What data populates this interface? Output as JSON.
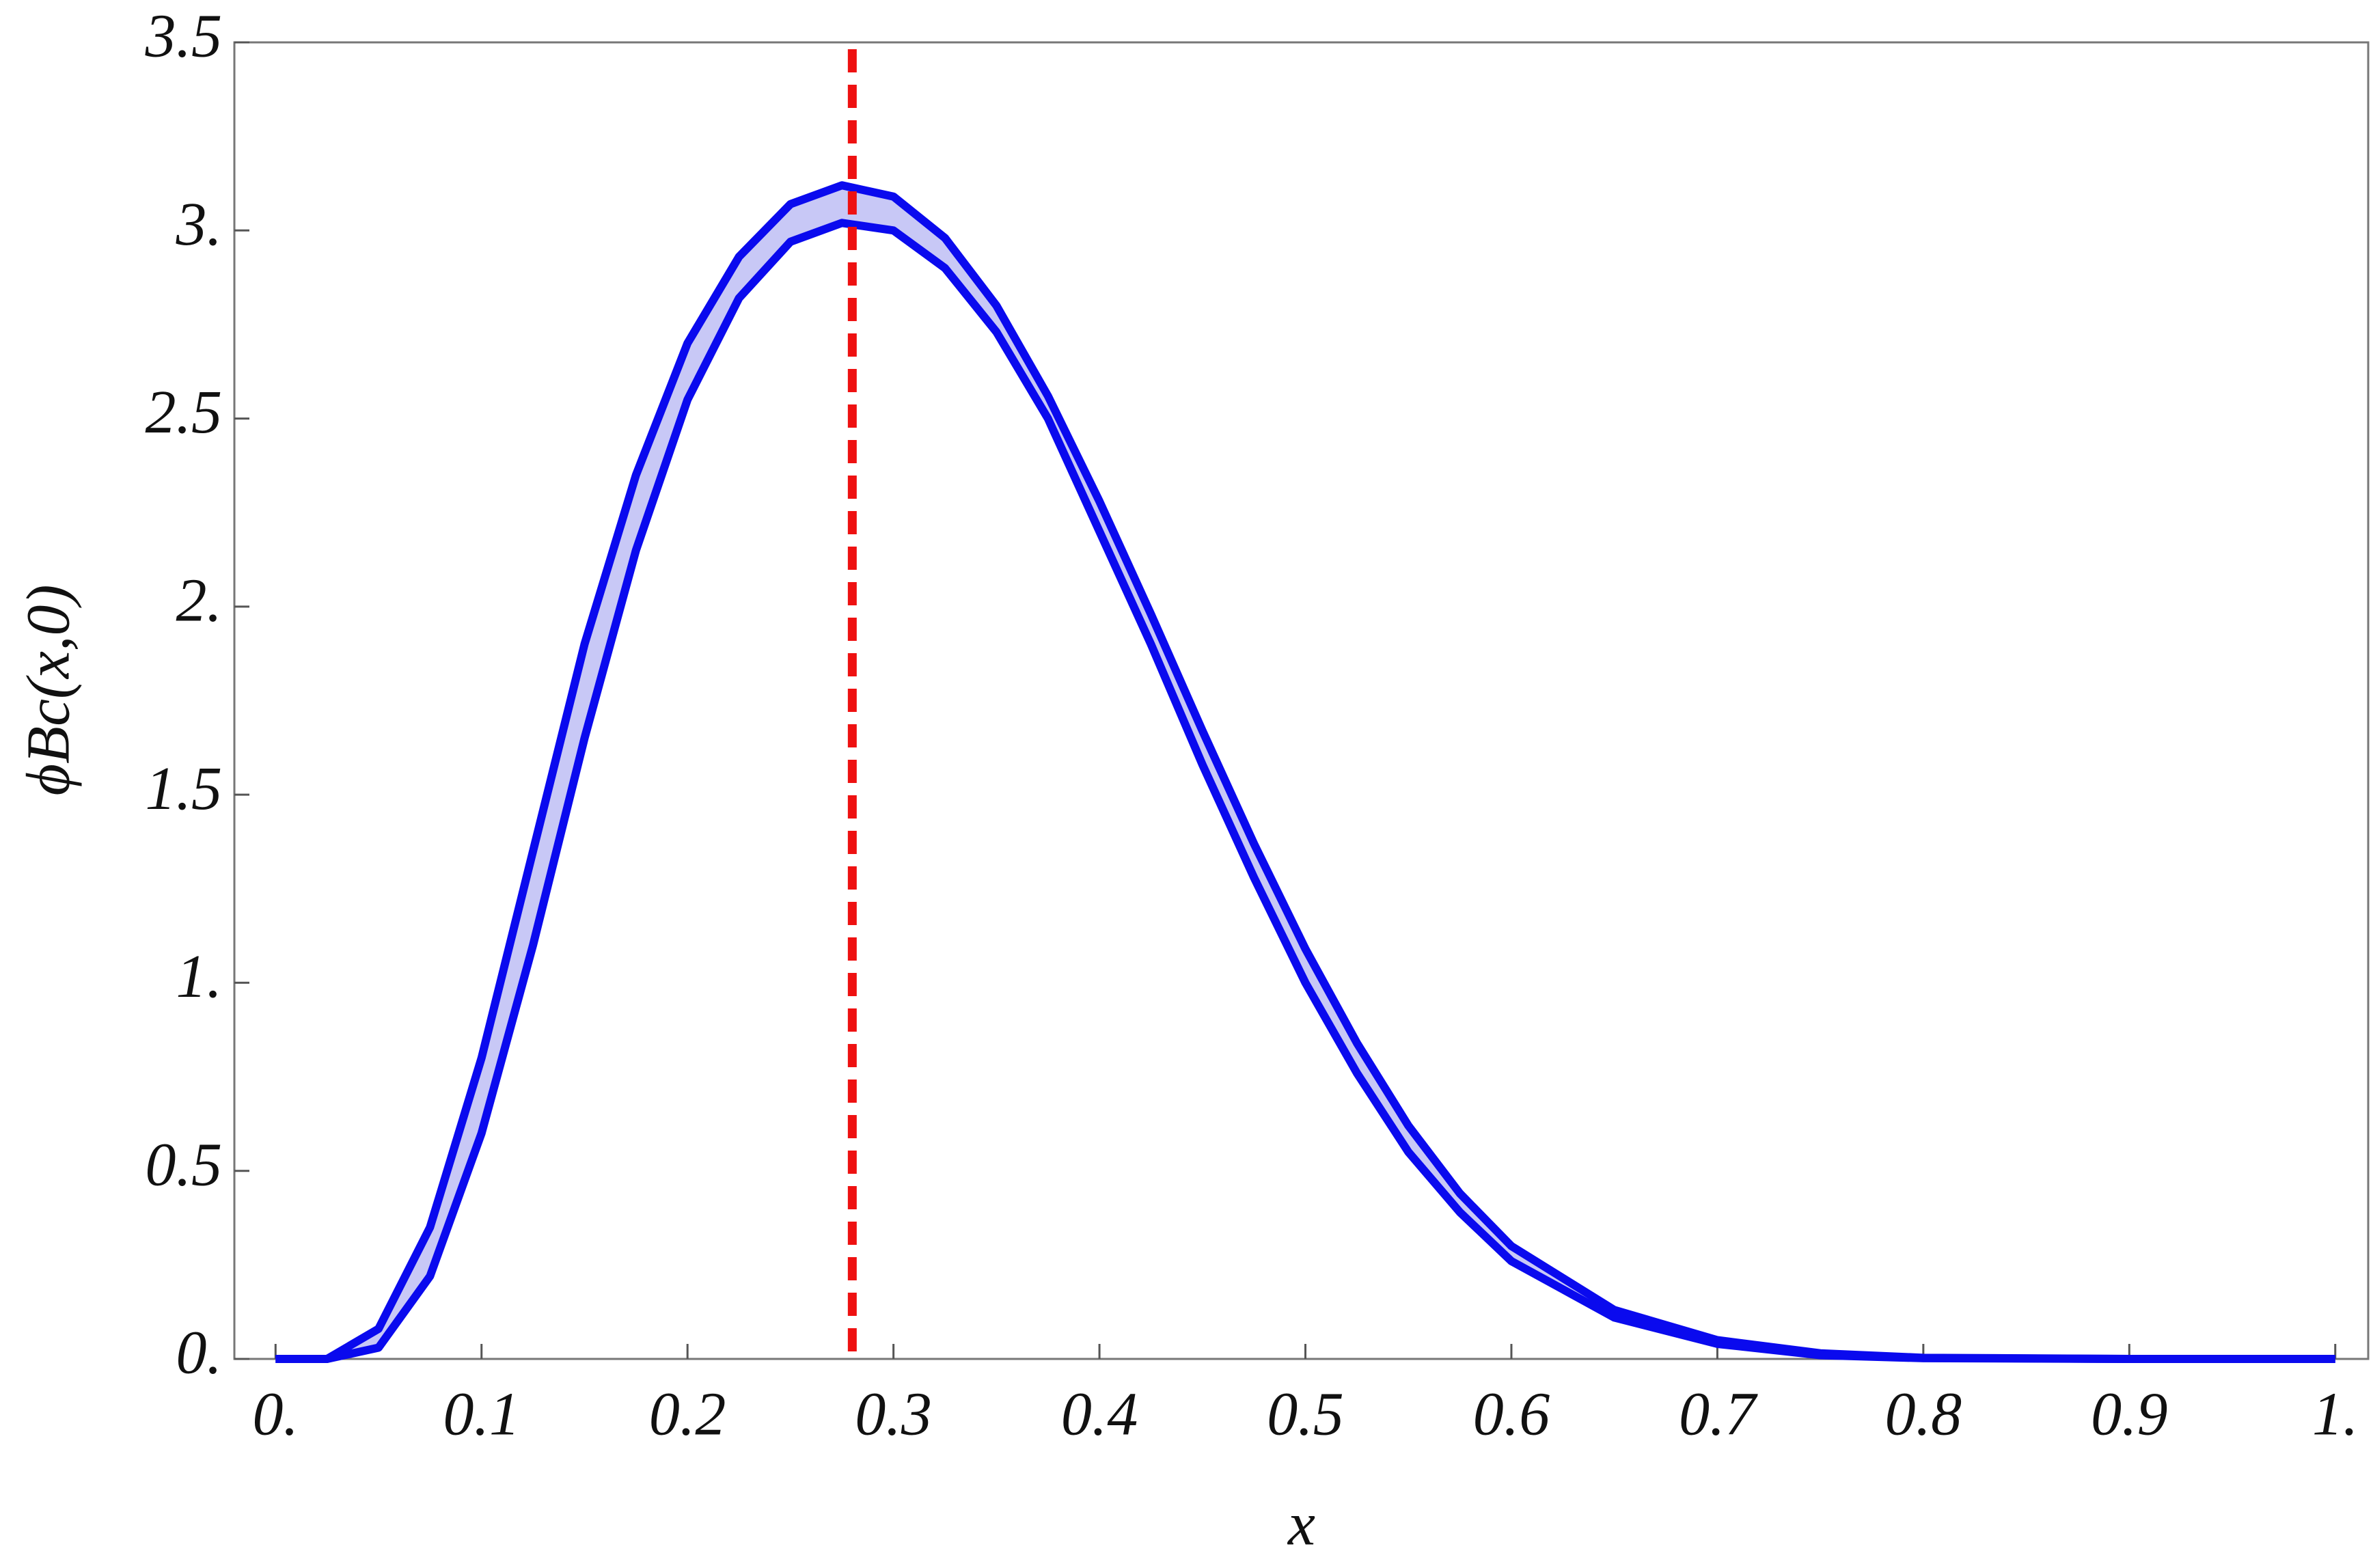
{
  "chart_data": {
    "type": "line",
    "xlabel": "x",
    "ylabel": "ϕBc(x,0)",
    "x": [
      0,
      0.025,
      0.05,
      0.075,
      0.1,
      0.125,
      0.15,
      0.175,
      0.2,
      0.225,
      0.25,
      0.275,
      0.3,
      0.325,
      0.35,
      0.375,
      0.4,
      0.425,
      0.45,
      0.475,
      0.5,
      0.525,
      0.55,
      0.575,
      0.6,
      0.65,
      0.7,
      0.75,
      0.8,
      0.9,
      1
    ],
    "series": [
      {
        "name": "upper",
        "color": "#0a0aee",
        "values": [
          0,
          0,
          0.08,
          0.35,
          0.8,
          1.35,
          1.9,
          2.35,
          2.7,
          2.93,
          3.07,
          3.12,
          3.09,
          2.98,
          2.8,
          2.56,
          2.28,
          1.98,
          1.67,
          1.37,
          1.09,
          0.84,
          0.62,
          0.44,
          0.3,
          0.13,
          0.05,
          0.015,
          0.003,
          0,
          0
        ]
      },
      {
        "name": "lower",
        "color": "#0a0aee",
        "values": [
          0,
          0,
          0.03,
          0.22,
          0.6,
          1.1,
          1.65,
          2.15,
          2.55,
          2.82,
          2.97,
          3.02,
          3.0,
          2.9,
          2.73,
          2.5,
          2.2,
          1.9,
          1.58,
          1.28,
          1.0,
          0.76,
          0.55,
          0.39,
          0.26,
          0.11,
          0.04,
          0.01,
          0.002,
          0,
          0
        ]
      }
    ],
    "band_color": "#c8c8f6",
    "vline": {
      "value": 0.28,
      "color": "#ee1111"
    },
    "xlim": [
      -0.02,
      1.016
    ],
    "ylim": [
      0,
      3.5
    ],
    "xticks": [
      {
        "value": 0,
        "label": "0."
      },
      0.1,
      0.2,
      0.3,
      0.4,
      0.5,
      0.6,
      0.7,
      0.8,
      0.9,
      {
        "value": 1,
        "label": "1."
      }
    ],
    "yticks": [
      {
        "value": 0,
        "label": "0."
      },
      0.5,
      {
        "value": 1,
        "label": "1."
      },
      1.5,
      {
        "value": 2,
        "label": "2."
      },
      2.5,
      {
        "value": 3,
        "label": "3."
      },
      3.5
    ]
  }
}
